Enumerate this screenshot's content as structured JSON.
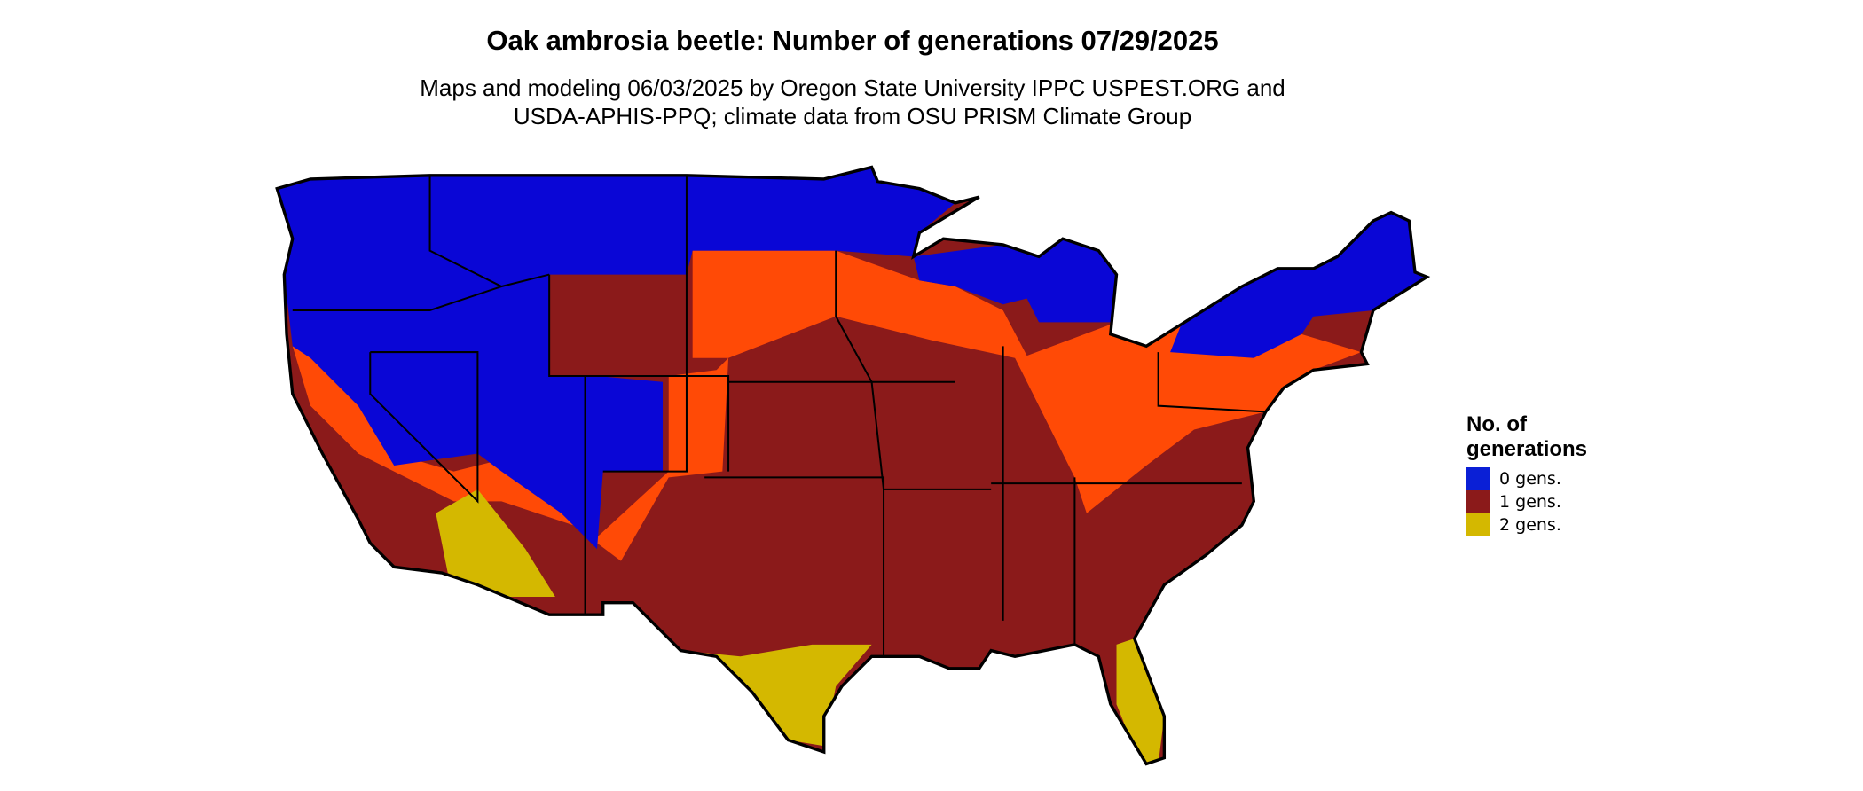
{
  "header": {
    "title": "Oak ambrosia beetle: Number of generations 07/29/2025",
    "subtitle_lines": [
      "Maps and modeling 06/03/2025 by Oregon State University IPPC USPEST.ORG and",
      "USDA-APHIS-PPQ; climate data from OSU PRISM Climate Group"
    ]
  },
  "legend": {
    "title_lines": [
      "No. of",
      "generations"
    ],
    "items": [
      {
        "label": "0 gens.",
        "color": "#0a1fd6"
      },
      {
        "label": "1 gens.",
        "color": "#8b1a1a"
      },
      {
        "label": "2 gens.",
        "color": "#d4b800"
      }
    ]
  }
}
